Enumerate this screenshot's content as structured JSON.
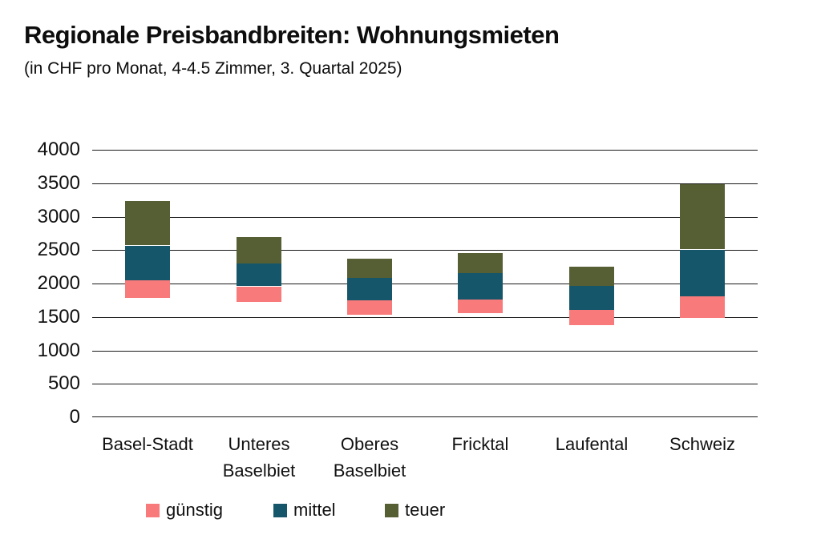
{
  "header": {
    "title": "Regionale Preisbandbreiten: Wohnungsmieten",
    "subtitle": "(in CHF pro Monat, 4-4.5 Zimmer, 3. Quartal 2025)"
  },
  "chart_data": {
    "type": "bar",
    "variant": "floating-stacked-range-bars",
    "title": "Regionale Preisbandbreiten: Wohnungsmieten",
    "subtitle": "(in CHF pro Monat, 4-4.5 Zimmer, 3. Quartal 2025)",
    "unit": "CHF pro Monat",
    "ylim": [
      0,
      4000
    ],
    "yticks": [
      0,
      500,
      1000,
      1500,
      2000,
      2500,
      3000,
      3500,
      4000
    ],
    "grid": "horizontal",
    "legend_position": "bottom",
    "categories": [
      "Basel-Stadt",
      "Unteres Baselbiet",
      "Oberes Baselbiet",
      "Fricktal",
      "Laufental",
      "Schweiz"
    ],
    "category_lines": [
      [
        "Basel-Stadt"
      ],
      [
        "Unteres",
        "Baselbiet"
      ],
      [
        "Oberes",
        "Baselbiet"
      ],
      [
        "Fricktal"
      ],
      [
        "Laufental"
      ],
      [
        "Schweiz"
      ]
    ],
    "series": [
      {
        "name": "günstig",
        "color": "#F87A7A",
        "ranges": [
          [
            1790,
            2050
          ],
          [
            1730,
            1960
          ],
          [
            1530,
            1750
          ],
          [
            1560,
            1760
          ],
          [
            1380,
            1610
          ],
          [
            1480,
            1810
          ]
        ]
      },
      {
        "name": "mittel",
        "color": "#16566A",
        "ranges": [
          [
            2050,
            2570
          ],
          [
            1960,
            2300
          ],
          [
            1750,
            2080
          ],
          [
            1760,
            2150
          ],
          [
            1610,
            1970
          ],
          [
            1810,
            2510
          ]
        ]
      },
      {
        "name": "teuer",
        "color": "#565E33",
        "ranges": [
          [
            2570,
            3230
          ],
          [
            2300,
            2700
          ],
          [
            2080,
            2370
          ],
          [
            2150,
            2450
          ],
          [
            1970,
            2260
          ],
          [
            2510,
            3480
          ]
        ]
      }
    ],
    "legend": [
      "günstig",
      "mittel",
      "teuer"
    ],
    "colors": {
      "text": "#111111",
      "gridline": "#1a1a1a",
      "background": "#ffffff"
    }
  }
}
